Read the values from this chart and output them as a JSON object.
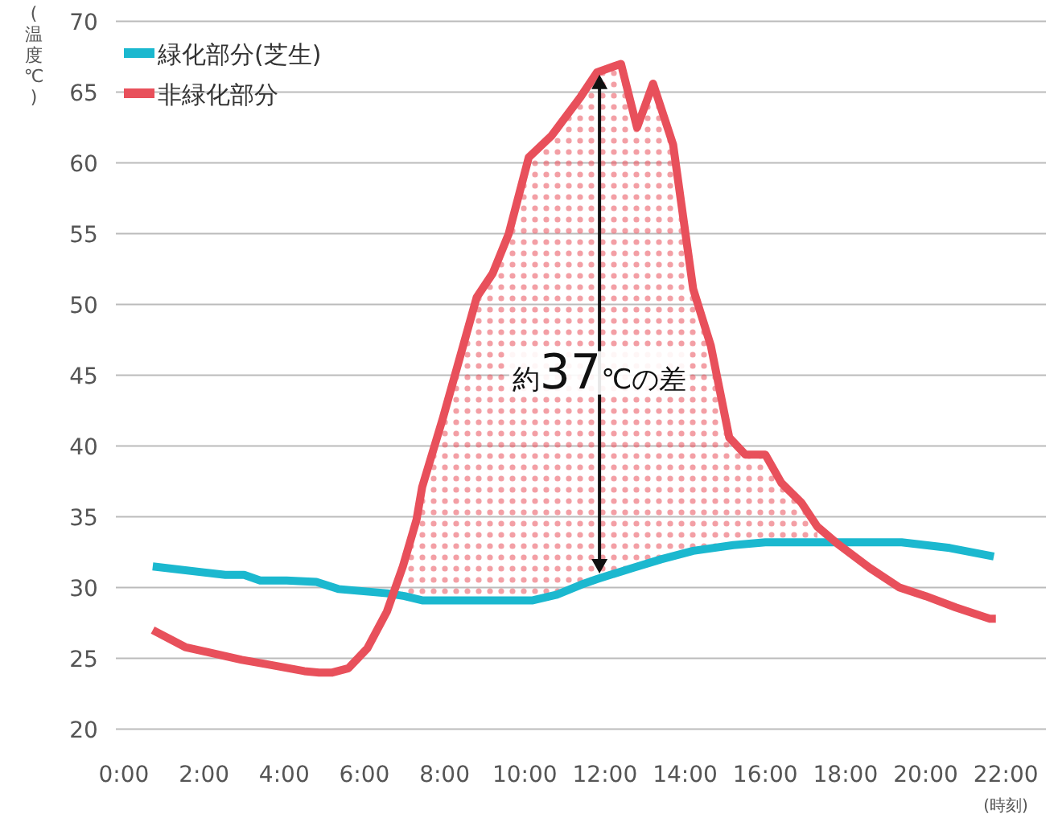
{
  "chart_data": {
    "type": "line",
    "xlabel": "(時刻)",
    "ylabel": "(温度℃)",
    "xlim": [
      -0.2,
      23
    ],
    "ylim": [
      20,
      70
    ],
    "xticks": [
      {
        "value": 0,
        "label": "0:00"
      },
      {
        "value": 2,
        "label": "2:00"
      },
      {
        "value": 4,
        "label": "4:00"
      },
      {
        "value": 6,
        "label": "6:00"
      },
      {
        "value": 8,
        "label": "8:00"
      },
      {
        "value": 10,
        "label": "10:00"
      },
      {
        "value": 12,
        "label": "12:00"
      },
      {
        "value": 14,
        "label": "14:00"
      },
      {
        "value": 16,
        "label": "16:00"
      },
      {
        "value": 18,
        "label": "18:00"
      },
      {
        "value": 20,
        "label": "20:00"
      },
      {
        "value": 22,
        "label": "22:00"
      }
    ],
    "yticks": [
      20,
      25,
      30,
      35,
      40,
      45,
      50,
      55,
      60,
      65,
      70
    ],
    "grid": "y",
    "legend": "top left",
    "marker": "none",
    "line_style": "solid",
    "series": [
      {
        "name": "緑化部分(芝生)",
        "color": "#1bb8cf",
        "x": [
          0.72,
          2.53,
          3.0,
          3.4,
          4.06,
          4.8,
          5.35,
          6.56,
          7.0,
          7.44,
          10.2,
          10.8,
          11.4,
          11.8,
          12.7,
          13.4,
          14.2,
          15.2,
          16.0,
          18.6,
          19.4,
          20.0,
          20.6,
          21.7
        ],
        "values": [
          31.5,
          30.9,
          30.9,
          30.5,
          30.5,
          30.4,
          29.9,
          29.6,
          29.4,
          29.1,
          29.1,
          29.5,
          30.2,
          30.6,
          31.4,
          32.0,
          32.6,
          33.0,
          33.2,
          33.2,
          33.2,
          33.0,
          32.8,
          32.2
        ]
      },
      {
        "name": "非緑化部分",
        "color": "#e8505b",
        "x": [
          0.72,
          1.53,
          2.94,
          3.54,
          4.5,
          4.87,
          5.2,
          5.6,
          6.07,
          6.56,
          6.96,
          7.3,
          7.44,
          7.96,
          8.8,
          9.2,
          9.6,
          10.1,
          10.66,
          11.4,
          11.8,
          12.4,
          12.8,
          13.2,
          13.7,
          14.2,
          14.64,
          15.1,
          15.5,
          16.0,
          16.4,
          16.9,
          17.3,
          17.8,
          18.6,
          19.35,
          20.0,
          20.75,
          21.6,
          21.75
        ],
        "values": [
          27.0,
          25.8,
          24.9,
          24.6,
          24.1,
          24.0,
          24.0,
          24.3,
          25.7,
          28.3,
          31.5,
          34.8,
          37.1,
          42.0,
          50.5,
          52.2,
          55.0,
          60.4,
          61.9,
          64.7,
          66.4,
          67.0,
          62.5,
          65.6,
          61.3,
          51.1,
          47.1,
          40.6,
          39.4,
          39.4,
          37.4,
          36.0,
          34.3,
          33.1,
          31.4,
          30.0,
          29.4,
          28.6,
          27.8,
          27.8
        ],
        "lower": [
          null,
          null,
          null,
          null,
          null,
          null,
          null,
          null,
          null,
          null,
          29.5,
          29.3,
          29.1,
          29.1,
          29.1,
          29.1,
          29.1,
          29.1,
          29.4,
          30.2,
          30.6,
          31.1,
          31.5,
          31.8,
          32.2,
          32.6,
          32.8,
          33.0,
          33.1,
          33.2,
          33.2,
          33.2,
          33.2,
          null,
          null,
          null,
          null,
          null,
          null,
          null
        ],
        "upper": [
          null,
          null,
          null,
          null,
          null,
          null,
          null,
          null,
          null,
          null,
          31.5,
          34.8,
          37.1,
          42.0,
          50.5,
          52.2,
          55.0,
          60.4,
          61.9,
          64.7,
          66.4,
          67.0,
          62.5,
          65.6,
          61.3,
          51.1,
          47.1,
          40.6,
          39.4,
          39.4,
          37.4,
          36.0,
          34.3,
          null,
          null,
          null,
          null,
          null,
          null,
          null
        ]
      }
    ],
    "annotations": [
      "約37℃の差"
    ]
  }
}
